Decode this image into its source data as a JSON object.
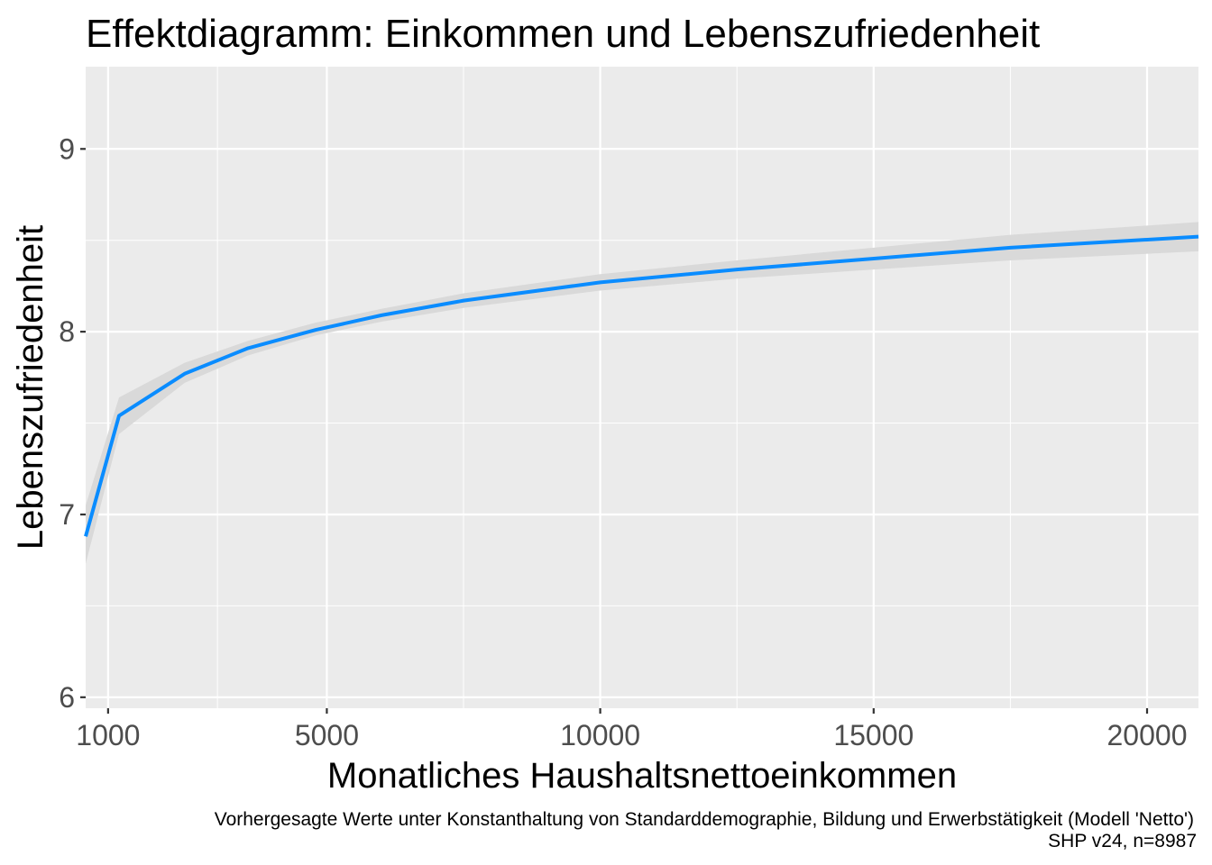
{
  "chart_data": {
    "type": "line",
    "title": "Effektdiagramm: Einkommen und Lebenszufriedenheit",
    "xlabel": "Monatliches Haushaltsnettoeinkommen",
    "ylabel": "Lebenszufriedenheit",
    "caption": "Vorhergesagte Werte unter Konstanthaltung von Standarddemographie, Bildung und Erwerbstätigkeit (Modell 'Netto')",
    "caption2": "SHP v24, n=8987",
    "xlim": [
      590,
      20940
    ],
    "ylim": [
      5.94,
      9.45
    ],
    "x_ticks": [
      1000,
      5000,
      10000,
      15000,
      20000
    ],
    "x_tick_labels": [
      "1000",
      "5000",
      "10000",
      "15000",
      "20000"
    ],
    "y_ticks": [
      6,
      7,
      8,
      9
    ],
    "y_tick_labels": [
      "6",
      "7",
      "8",
      "9"
    ],
    "grid": true,
    "line_color": "#0a8cff",
    "band_color": "#d9d9d9",
    "panel_color": "#ebebeb",
    "x": [
      590,
      1200,
      2400,
      3560,
      4800,
      6000,
      7500,
      10000,
      12500,
      15000,
      17500,
      20940
    ],
    "y": [
      6.88,
      7.54,
      7.77,
      7.91,
      8.01,
      8.09,
      8.17,
      8.27,
      8.34,
      8.4,
      8.46,
      8.52
    ],
    "lower": [
      6.73,
      7.44,
      7.72,
      7.87,
      7.98,
      8.055,
      8.13,
      8.225,
      8.29,
      8.34,
      8.39,
      8.44
    ],
    "upper": [
      7.05,
      7.64,
      7.83,
      7.95,
      8.05,
      8.125,
      8.21,
      8.315,
      8.39,
      8.46,
      8.53,
      8.6
    ]
  }
}
